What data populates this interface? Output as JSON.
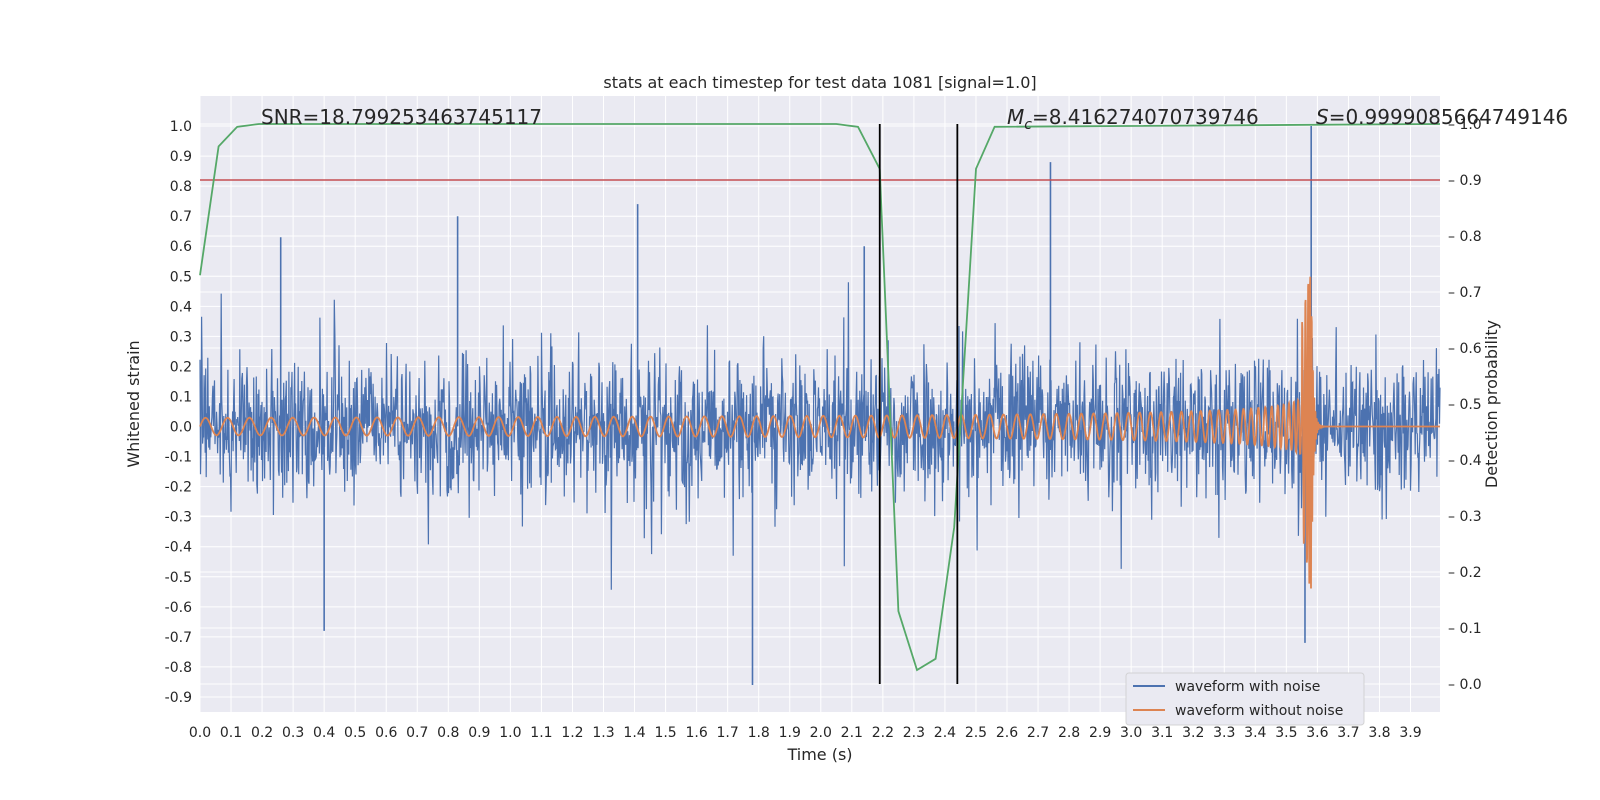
{
  "chart_data": {
    "type": "line",
    "title": "stats at each timestep for test data 1081 [signal=1.0]",
    "xlabel": "Time (s)",
    "ylabel": "Whitened strain",
    "y2label": "Detection probability",
    "xlim": [
      0.0,
      3.995
    ],
    "ylim": [
      -0.95,
      1.1
    ],
    "y2lim": [
      -0.05,
      1.05
    ],
    "xticks": [
      "0.0",
      "0.1",
      "0.2",
      "0.3",
      "0.4",
      "0.5",
      "0.6",
      "0.7",
      "0.8",
      "0.9",
      "1.0",
      "1.1",
      "1.2",
      "1.3",
      "1.4",
      "1.5",
      "1.6",
      "1.7",
      "1.8",
      "1.9",
      "2.0",
      "2.1",
      "2.2",
      "2.3",
      "2.4",
      "2.5",
      "2.6",
      "2.7",
      "2.8",
      "2.9",
      "3.0",
      "3.1",
      "3.2",
      "3.3",
      "3.4",
      "3.5",
      "3.6",
      "3.7",
      "3.8",
      "3.9"
    ],
    "yticks": [
      "1.0",
      "0.9",
      "0.8",
      "0.7",
      "0.6",
      "0.5",
      "0.4",
      "0.3",
      "0.2",
      "0.1",
      "0.0",
      "-0.1",
      "-0.2",
      "-0.3",
      "-0.4",
      "-0.5",
      "-0.6",
      "-0.7",
      "-0.8",
      "-0.9"
    ],
    "y2ticks": [
      "1.0",
      "0.9",
      "0.8",
      "0.7",
      "0.6",
      "0.5",
      "0.4",
      "0.3",
      "0.2",
      "0.1",
      "0.0"
    ],
    "grid": true,
    "legend_position": "bottom-right",
    "annotations": {
      "snr": "SNR=18.799253463745117",
      "mc_symbol": "M",
      "mc_sub": "c",
      "mc_value": "=8.416274070739746",
      "s_symbol": "S",
      "s_value": "=0.9999085664749146"
    },
    "series": [
      {
        "name": "waveform with noise",
        "color": "#4c72b0",
        "axis": "left",
        "description": "whitened noisy strain, samples mostly within +/-0.45 with spikes",
        "spikes": [
          {
            "t": 0.83,
            "v": 0.7
          },
          {
            "t": 1.41,
            "v": 0.74
          },
          {
            "t": 1.78,
            "v": -0.86
          },
          {
            "t": 2.74,
            "v": 0.88
          },
          {
            "t": 3.58,
            "v": 1.0
          },
          {
            "t": 3.56,
            "v": -0.72
          },
          {
            "t": 0.4,
            "v": -0.68
          },
          {
            "t": 0.26,
            "v": 0.63
          },
          {
            "t": 2.14,
            "v": 0.6
          }
        ]
      },
      {
        "name": "waveform without noise",
        "color": "#dd8452",
        "axis": "left",
        "description": "chirp, amplitude ~0.03 growing to ~0.57 at merger t=3.58s",
        "merger_time": 3.58,
        "peak_amplitude": 0.57
      },
      {
        "name": "detection probability",
        "color": "#55a868",
        "axis": "right",
        "x": [
          0.0,
          0.06,
          0.12,
          0.19,
          2.05,
          2.12,
          2.19,
          2.25,
          2.31,
          2.37,
          2.43,
          2.5,
          2.56,
          3.995
        ],
        "y": [
          0.73,
          0.96,
          0.995,
          1.0,
          1.0,
          0.995,
          0.92,
          0.13,
          0.025,
          0.045,
          0.28,
          0.92,
          0.995,
          1.0
        ]
      }
    ],
    "threshold": {
      "value": 0.9,
      "axis": "right",
      "color": "#c44e52"
    },
    "window_lines": [
      2.19,
      2.44
    ]
  }
}
